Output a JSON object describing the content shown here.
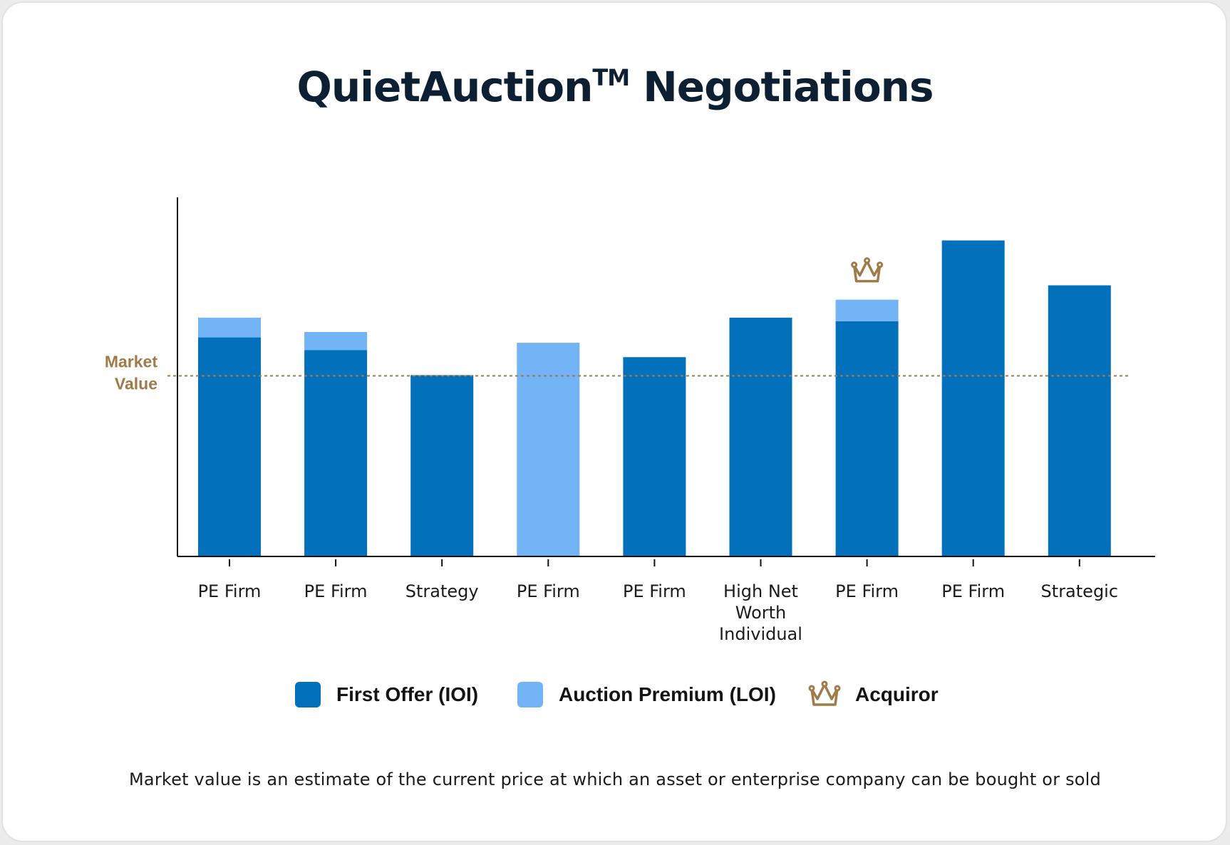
{
  "chart_data": {
    "type": "bar",
    "title_main": "QuietAuction",
    "title_tm": "TM",
    "title_rest": " Negotiations",
    "categories": [
      "PE Firm",
      "PE Firm",
      "Strategy",
      "PE Firm",
      "PE Firm",
      "High Net Worth Individual",
      "PE Firm",
      "PE Firm",
      "Strategic"
    ],
    "series": [
      {
        "name": "First Offer (IOI)",
        "color": "#0270bb",
        "values": [
          61,
          57.5,
          50.5,
          0,
          55.5,
          66.5,
          65.5,
          88,
          75.5
        ]
      },
      {
        "name": "Auction Premium (LOI)",
        "color": "#72b4f5",
        "values": [
          5.5,
          5,
          0,
          59.5,
          0,
          0,
          6,
          0,
          0
        ]
      }
    ],
    "market_value": {
      "label_line1": "Market",
      "label_line2": "Value",
      "value": 50.3,
      "color": "#a07a48"
    },
    "acquiror_index": 6,
    "ylim": [
      0,
      100
    ],
    "legend": {
      "first_offer": "First Offer (IOI)",
      "auction_premium": "Auction Premium (LOI)",
      "acquiror": "Acquiror"
    },
    "footnote": "Market value is an estimate of the current price at which an asset or enterprise company can be bought or sold"
  }
}
